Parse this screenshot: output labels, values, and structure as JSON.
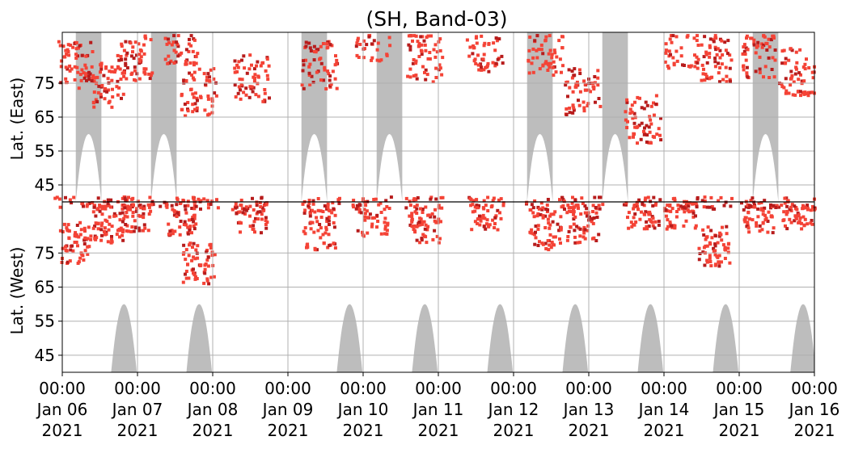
{
  "chart_data": {
    "type": "heatmap",
    "title": "(SH, Band-03)",
    "ylabel_east": "Lat. (East)",
    "ylabel_west": "Lat. (West)",
    "y_ticks_east": [
      "45",
      "55",
      "65",
      "75"
    ],
    "y_ticks_west": [
      "75",
      "65",
      "55",
      "45"
    ],
    "x_ticks": [
      {
        "time": "00:00",
        "date": "Jan 06",
        "year": "2021"
      },
      {
        "time": "00:00",
        "date": "Jan 07",
        "year": "2021"
      },
      {
        "time": "00:00",
        "date": "Jan 08",
        "year": "2021"
      },
      {
        "time": "00:00",
        "date": "Jan 09",
        "year": "2021"
      },
      {
        "time": "00:00",
        "date": "Jan 10",
        "year": "2021"
      },
      {
        "time": "00:00",
        "date": "Jan 11",
        "year": "2021"
      },
      {
        "time": "00:00",
        "date": "Jan 12",
        "year": "2021"
      },
      {
        "time": "00:00",
        "date": "Jan 13",
        "year": "2021"
      },
      {
        "time": "00:00",
        "date": "Jan 14",
        "year": "2021"
      },
      {
        "time": "00:00",
        "date": "Jan 15",
        "year": "2021"
      },
      {
        "time": "00:00",
        "date": "Jan 16",
        "year": "2021"
      }
    ],
    "xlim": [
      "2021-01-06 00:00",
      "2021-01-16 00:00"
    ],
    "ylim_east": [
      40,
      90
    ],
    "ylim_west": [
      40,
      90
    ],
    "grid": true,
    "colors": {
      "night_band": "#bdbdbd",
      "activity_low": "#f44336",
      "activity_high": "#b71c1c",
      "grid": "#b0b0b0",
      "center_line": "#000000"
    },
    "night_bands": {
      "east_centers_day": [
        0.35,
        1.35,
        3.35,
        4.35,
        6.35,
        7.35,
        9.35
      ],
      "east_min_lat": 60,
      "west_centers_day": [
        0.82,
        1.82,
        3.82,
        4.82,
        5.82,
        6.82,
        7.82,
        8.82,
        9.85
      ],
      "west_min_lat": 60
    },
    "activity_patches": [
      {
        "day": 0.15,
        "lat_east": 78,
        "lat_west": 76,
        "intensity": 0.7
      },
      {
        "day": 0.6,
        "lat_east": 72,
        "lat_west": 82,
        "intensity": 0.8
      },
      {
        "day": 0.95,
        "lat_east": 80,
        "lat_west": 85,
        "intensity": 0.9
      },
      {
        "day": 1.55,
        "lat_east": 85,
        "lat_west": 84,
        "intensity": 0.8
      },
      {
        "day": 1.8,
        "lat_east": 70,
        "lat_west": 70,
        "intensity": 0.7
      },
      {
        "day": 2.5,
        "lat_east": 74,
        "lat_west": 85,
        "intensity": 0.9
      },
      {
        "day": 3.4,
        "lat_east": 78,
        "lat_west": 80,
        "intensity": 0.8
      },
      {
        "day": 4.1,
        "lat_east": 86,
        "lat_west": 84,
        "intensity": 0.9
      },
      {
        "day": 4.8,
        "lat_east": 80,
        "lat_west": 82,
        "intensity": 0.7
      },
      {
        "day": 5.6,
        "lat_east": 83,
        "lat_west": 85,
        "intensity": 0.6
      },
      {
        "day": 6.4,
        "lat_east": 82,
        "lat_west": 80,
        "intensity": 0.6
      },
      {
        "day": 6.9,
        "lat_east": 70,
        "lat_west": 82,
        "intensity": 0.7
      },
      {
        "day": 7.7,
        "lat_east": 62,
        "lat_west": 86,
        "intensity": 0.8
      },
      {
        "day": 8.2,
        "lat_east": 84,
        "lat_west": 86,
        "intensity": 0.7
      },
      {
        "day": 8.65,
        "lat_east": 80,
        "lat_west": 75,
        "intensity": 0.9
      },
      {
        "day": 9.25,
        "lat_east": 81,
        "lat_west": 85,
        "intensity": 0.8
      },
      {
        "day": 9.75,
        "lat_east": 76,
        "lat_west": 86,
        "intensity": 0.6
      }
    ]
  }
}
